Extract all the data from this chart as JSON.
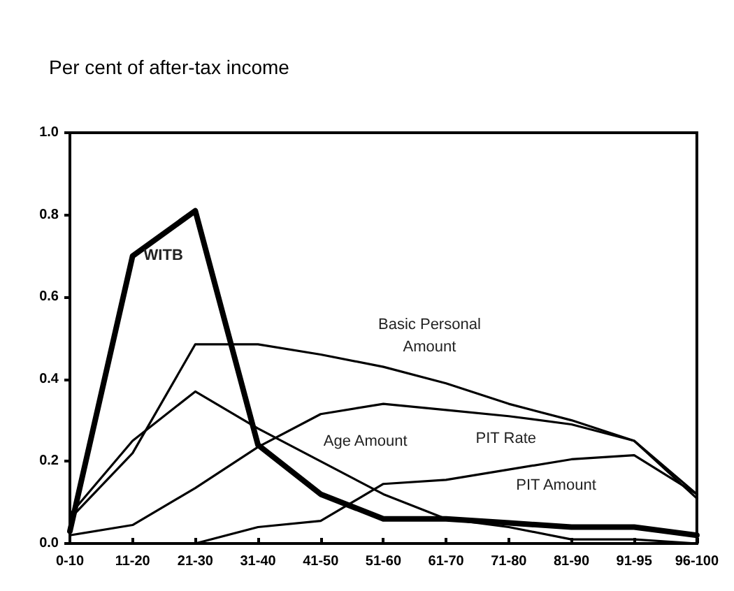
{
  "chart_data": {
    "type": "line",
    "title": "Per cent of after-tax income",
    "categories": [
      "0-10",
      "11-20",
      "21-30",
      "31-40",
      "41-50",
      "51-60",
      "61-70",
      "71-80",
      "81-90",
      "91-95",
      "96-100"
    ],
    "series": [
      {
        "name": "WITB",
        "color": "#000000",
        "values": [
          0.03,
          0.7,
          0.81,
          0.24,
          0.12,
          0.06,
          0.06,
          0.05,
          0.04,
          0.04,
          0.02
        ]
      },
      {
        "name": "Basic Personal Amount",
        "color": "#000000",
        "values": [
          0.06,
          0.22,
          0.485,
          0.485,
          0.46,
          0.43,
          0.39,
          0.34,
          0.3,
          0.25,
          0.11
        ]
      },
      {
        "name": "Age Amount",
        "color": "#000000",
        "values": [
          0.07,
          0.25,
          0.37,
          0.28,
          0.2,
          0.12,
          0.06,
          0.04,
          0.01,
          0.01,
          0.0
        ]
      },
      {
        "name": "PIT Rate",
        "color": "#000000",
        "values": [
          0.02,
          0.045,
          0.135,
          0.235,
          0.315,
          0.34,
          0.325,
          0.31,
          0.29,
          0.25,
          0.12
        ]
      },
      {
        "name": "PIT Amount",
        "color": "#000000",
        "values": [
          0.0,
          0.0,
          0.0,
          0.04,
          0.055,
          0.145,
          0.155,
          0.18,
          0.205,
          0.215,
          0.12
        ]
      }
    ],
    "ylim": [
      0,
      1
    ],
    "yticks": [
      {
        "value": 0,
        "label": "0.0"
      },
      {
        "value": 0.2,
        "label": "0.2"
      },
      {
        "value": 0.4,
        "label": "0.4"
      },
      {
        "value": 0.6,
        "label": "0.6"
      },
      {
        "value": 0.8,
        "label": "0.8"
      },
      {
        "value": 1,
        "label": "1.0"
      }
    ],
    "grid": false,
    "legend": false,
    "marker": "none",
    "line_style": "solid"
  }
}
